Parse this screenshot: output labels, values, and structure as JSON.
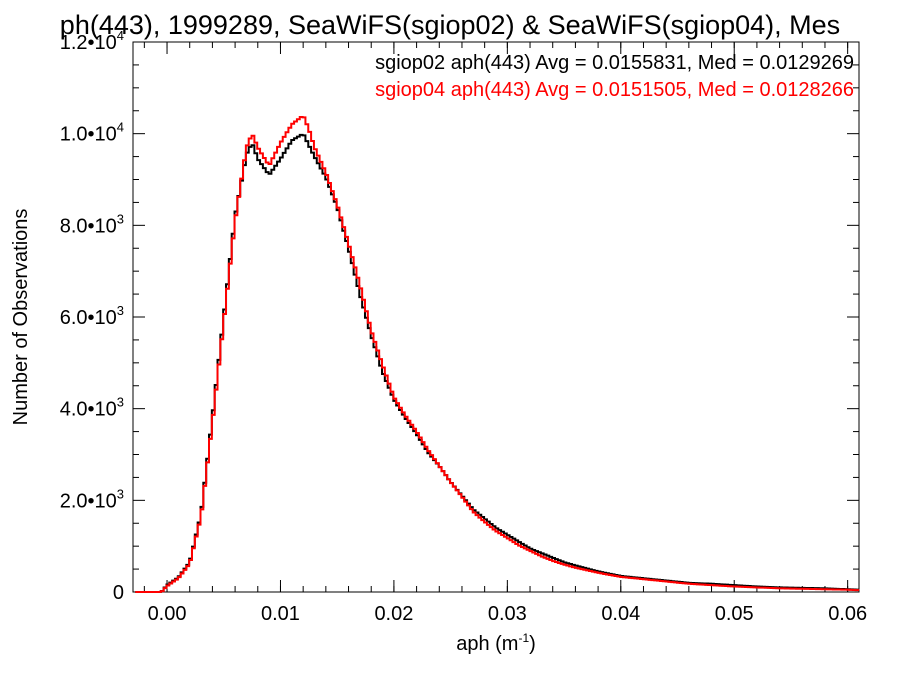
{
  "chart_data": {
    "type": "line",
    "title": "ph(443), 1999289, SeaWiFS(sgiop02) & SeaWiFS(sgiop04), Mes",
    "xlabel": "aph (m",
    "xlabel_sup": "-1",
    "xlabel_close": ")",
    "ylabel": "Number of Observations",
    "xlim": [
      -0.003,
      0.061
    ],
    "ylim": [
      0,
      12000
    ],
    "x_ticks": [
      {
        "value": 0.0,
        "label": "0.00"
      },
      {
        "value": 0.01,
        "label": "0.01"
      },
      {
        "value": 0.02,
        "label": "0.02"
      },
      {
        "value": 0.03,
        "label": "0.03"
      },
      {
        "value": 0.04,
        "label": "0.04"
      },
      {
        "value": 0.05,
        "label": "0.05"
      },
      {
        "value": 0.06,
        "label": "0.06"
      }
    ],
    "y_ticks": [
      {
        "value": 0,
        "label": "0",
        "exp": ""
      },
      {
        "value": 2000,
        "label": "2.0•10",
        "exp": "3"
      },
      {
        "value": 4000,
        "label": "4.0•10",
        "exp": "3"
      },
      {
        "value": 6000,
        "label": "6.0•10",
        "exp": "3"
      },
      {
        "value": 8000,
        "label": "8.0•10",
        "exp": "3"
      },
      {
        "value": 10000,
        "label": "1.0•10",
        "exp": "4"
      },
      {
        "value": 12000,
        "label": "1.2•10",
        "exp": "4"
      }
    ],
    "grid": false,
    "legend_position": "top-right",
    "series": [
      {
        "name": "sgiop02 aph(443) Avg = 0.0155831, Med = 0.0129269",
        "color": "#000000",
        "points": [
          [
            -0.0028,
            0
          ],
          [
            -0.0005,
            0
          ],
          [
            0.0,
            150
          ],
          [
            0.001,
            320
          ],
          [
            0.002,
            650
          ],
          [
            0.003,
            1700
          ],
          [
            0.004,
            3800
          ],
          [
            0.005,
            6000
          ],
          [
            0.006,
            8200
          ],
          [
            0.007,
            9550
          ],
          [
            0.0075,
            9800
          ],
          [
            0.008,
            9450
          ],
          [
            0.009,
            9100
          ],
          [
            0.01,
            9450
          ],
          [
            0.011,
            9850
          ],
          [
            0.012,
            10000
          ],
          [
            0.0125,
            9750
          ],
          [
            0.013,
            9500
          ],
          [
            0.014,
            9050
          ],
          [
            0.015,
            8400
          ],
          [
            0.016,
            7500
          ],
          [
            0.017,
            6500
          ],
          [
            0.018,
            5600
          ],
          [
            0.019,
            4800
          ],
          [
            0.02,
            4200
          ],
          [
            0.021,
            3800
          ],
          [
            0.022,
            3450
          ],
          [
            0.023,
            3050
          ],
          [
            0.024,
            2750
          ],
          [
            0.025,
            2400
          ],
          [
            0.026,
            2100
          ],
          [
            0.027,
            1800
          ],
          [
            0.028,
            1600
          ],
          [
            0.029,
            1400
          ],
          [
            0.03,
            1250
          ],
          [
            0.031,
            1100
          ],
          [
            0.032,
            950
          ],
          [
            0.033,
            850
          ],
          [
            0.034,
            750
          ],
          [
            0.035,
            650
          ],
          [
            0.036,
            580
          ],
          [
            0.038,
            450
          ],
          [
            0.04,
            350
          ],
          [
            0.042,
            300
          ],
          [
            0.044,
            250
          ],
          [
            0.046,
            200
          ],
          [
            0.048,
            180
          ],
          [
            0.05,
            150
          ],
          [
            0.052,
            120
          ],
          [
            0.054,
            100
          ],
          [
            0.056,
            90
          ],
          [
            0.058,
            80
          ],
          [
            0.06,
            60
          ],
          [
            0.061,
            50
          ]
        ]
      },
      {
        "name": "sgiop04 aph(443) Avg = 0.0151505, Med = 0.0128266",
        "color": "#ff0000",
        "points": [
          [
            -0.0028,
            0
          ],
          [
            -0.0005,
            0
          ],
          [
            0.0,
            130
          ],
          [
            0.001,
            300
          ],
          [
            0.002,
            620
          ],
          [
            0.003,
            1650
          ],
          [
            0.004,
            3700
          ],
          [
            0.005,
            5900
          ],
          [
            0.006,
            8100
          ],
          [
            0.007,
            9700
          ],
          [
            0.0075,
            10000
          ],
          [
            0.008,
            9700
          ],
          [
            0.009,
            9300
          ],
          [
            0.01,
            9800
          ],
          [
            0.011,
            10200
          ],
          [
            0.012,
            10400
          ],
          [
            0.0125,
            10100
          ],
          [
            0.013,
            9700
          ],
          [
            0.014,
            9150
          ],
          [
            0.015,
            8450
          ],
          [
            0.016,
            7600
          ],
          [
            0.017,
            6700
          ],
          [
            0.018,
            5700
          ],
          [
            0.019,
            4950
          ],
          [
            0.02,
            4250
          ],
          [
            0.021,
            3850
          ],
          [
            0.022,
            3500
          ],
          [
            0.023,
            3100
          ],
          [
            0.024,
            2750
          ],
          [
            0.025,
            2400
          ],
          [
            0.026,
            2080
          ],
          [
            0.027,
            1750
          ],
          [
            0.028,
            1530
          ],
          [
            0.029,
            1330
          ],
          [
            0.03,
            1180
          ],
          [
            0.031,
            1020
          ],
          [
            0.032,
            900
          ],
          [
            0.033,
            780
          ],
          [
            0.034,
            680
          ],
          [
            0.035,
            600
          ],
          [
            0.036,
            530
          ],
          [
            0.038,
            420
          ],
          [
            0.04,
            330
          ],
          [
            0.042,
            280
          ],
          [
            0.044,
            230
          ],
          [
            0.046,
            180
          ],
          [
            0.048,
            150
          ],
          [
            0.05,
            120
          ],
          [
            0.052,
            100
          ],
          [
            0.054,
            80
          ],
          [
            0.056,
            70
          ],
          [
            0.058,
            60
          ],
          [
            0.06,
            50
          ],
          [
            0.061,
            40
          ]
        ]
      }
    ]
  }
}
